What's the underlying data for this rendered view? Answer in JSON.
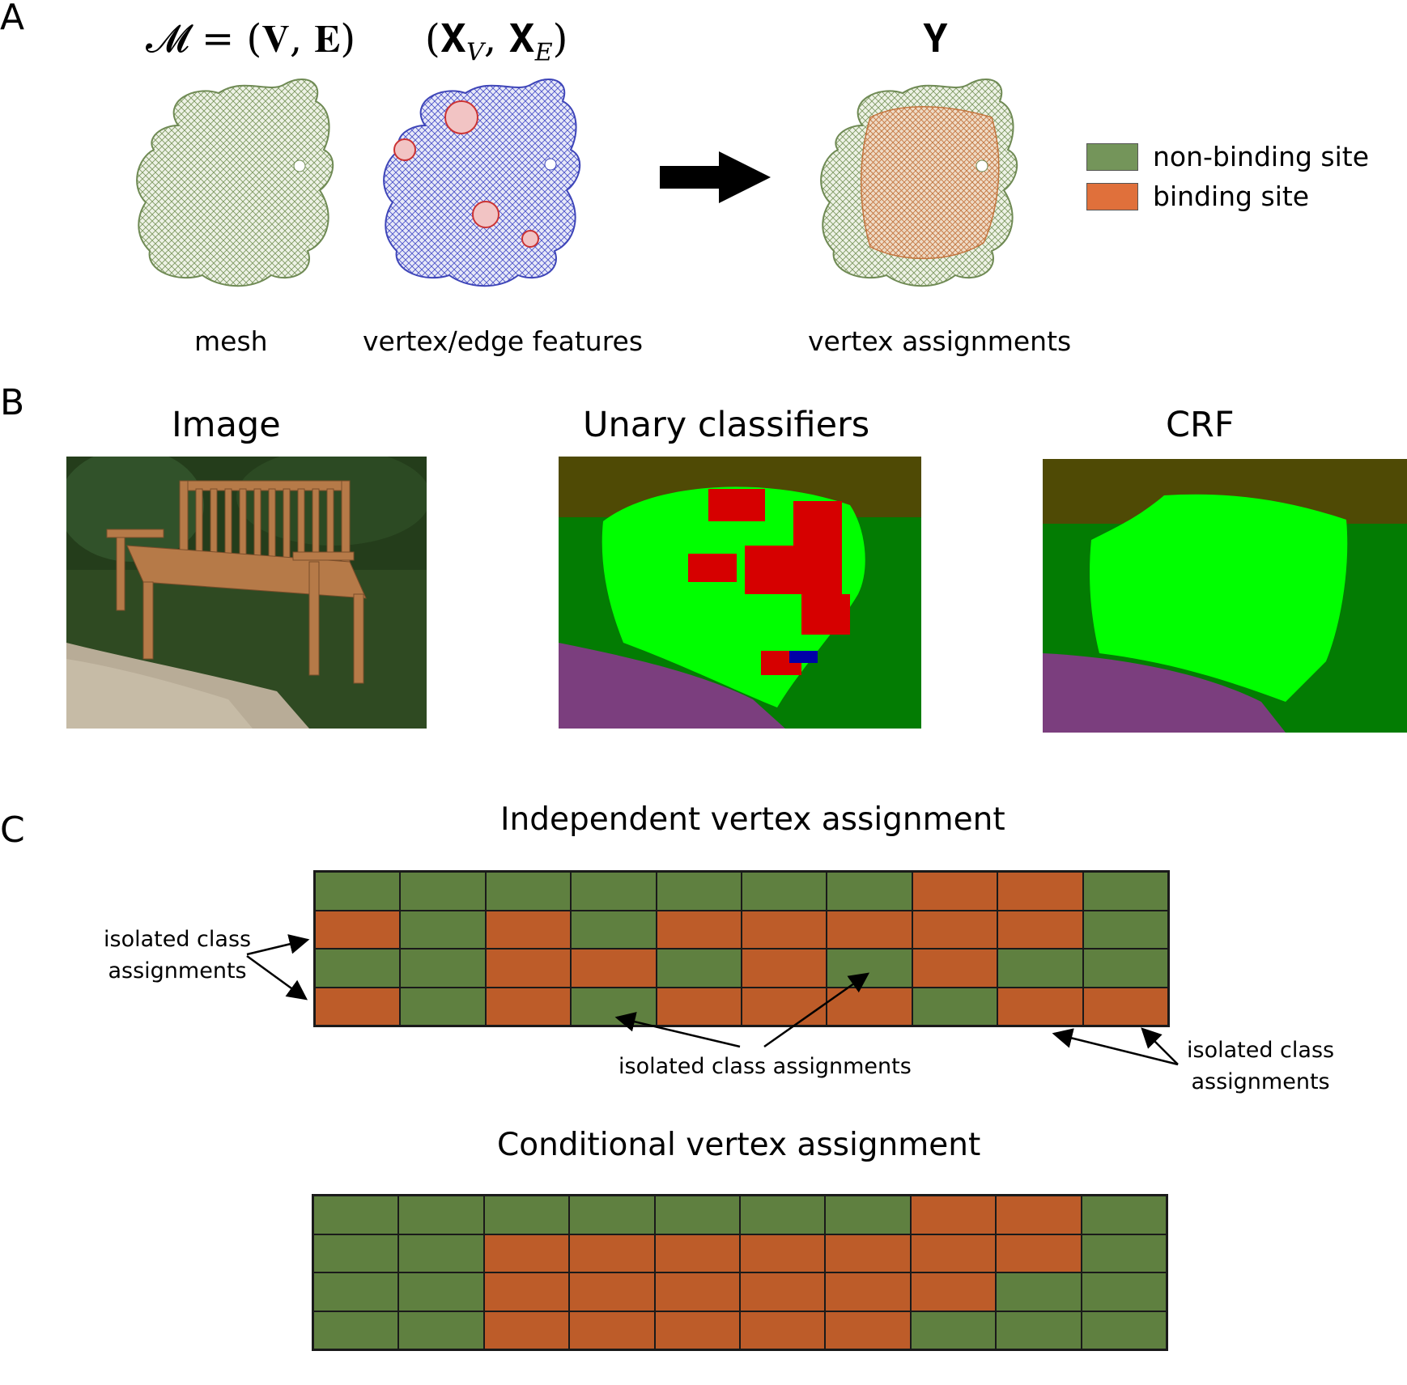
{
  "colors": {
    "non_binding": "#5f8040",
    "binding": "#bd5c29",
    "legend_non_binding": "#74955a",
    "legend_binding": "#e0703b",
    "seg_sky": "#4f4a05",
    "seg_tree": "#037c03",
    "seg_bench": "#00ff00",
    "seg_red": "#d60000",
    "seg_ground": "#7b3e7e",
    "seg_blue": "#0000a8"
  },
  "panel_a": {
    "letter": "A",
    "eq_mesh": "𝓜 = (𝐕, 𝐄)",
    "eq_features": "(𝐗",
    "eq_features_sub_v": "V",
    "eq_features_mid": ", 𝐗",
    "eq_features_sub_e": "E",
    "eq_features_end": ")",
    "eq_y": "𝐘",
    "caption_mesh": "mesh",
    "caption_features": "vertex/edge features",
    "caption_assign": "vertex assignments",
    "legend": [
      {
        "label": "non-binding site",
        "color": "#74955a"
      },
      {
        "label": "binding site",
        "color": "#e0703b"
      }
    ]
  },
  "panel_b": {
    "letter": "B",
    "title_image": "Image",
    "title_unary": "Unary classifiers",
    "title_crf": "CRF"
  },
  "panel_c": {
    "letter": "C",
    "title_independent": "Independent vertex assignment",
    "title_conditional": "Conditional vertex assignment",
    "note_left_line1": "isolated class",
    "note_left_line2": "assignments",
    "note_middle": "isolated class assignments",
    "note_right_line1": "isolated class",
    "note_right_line2": "assignments",
    "independent_grid": [
      [
        "G",
        "G",
        "G",
        "G",
        "G",
        "G",
        "G",
        "O",
        "O",
        "G"
      ],
      [
        "O",
        "G",
        "O",
        "G",
        "O",
        "O",
        "O",
        "O",
        "O",
        "G"
      ],
      [
        "G",
        "G",
        "O",
        "O",
        "G",
        "O",
        "G",
        "O",
        "G",
        "G"
      ],
      [
        "O",
        "G",
        "O",
        "G",
        "O",
        "O",
        "O",
        "G",
        "O",
        "O"
      ]
    ],
    "conditional_grid": [
      [
        "G",
        "G",
        "G",
        "G",
        "G",
        "G",
        "G",
        "O",
        "O",
        "G"
      ],
      [
        "G",
        "G",
        "O",
        "O",
        "O",
        "O",
        "O",
        "O",
        "O",
        "G"
      ],
      [
        "G",
        "G",
        "O",
        "O",
        "O",
        "O",
        "O",
        "O",
        "G",
        "G"
      ],
      [
        "G",
        "G",
        "O",
        "O",
        "O",
        "O",
        "O",
        "G",
        "G",
        "G"
      ]
    ]
  }
}
